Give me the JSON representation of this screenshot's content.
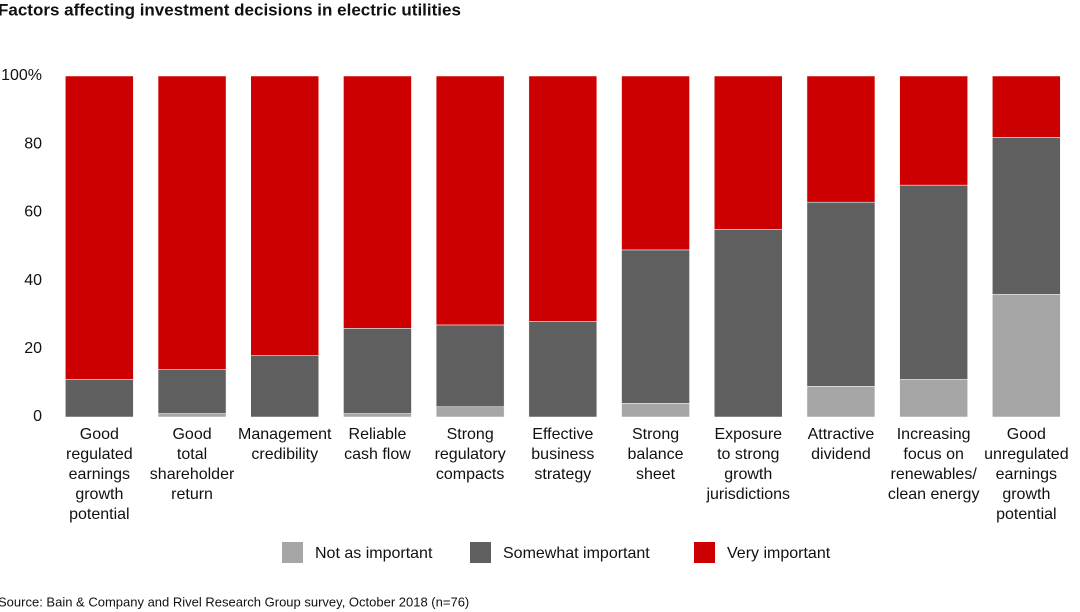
{
  "chart_data": {
    "type": "stacked-bar",
    "title": "Factors affecting investment decisions in electric utilities",
    "categories": [
      [
        "Good",
        "regulated",
        "earnings",
        "growth",
        "potential"
      ],
      [
        "Good",
        "total",
        "shareholder",
        "return"
      ],
      [
        "Management",
        "credibility"
      ],
      [
        "Reliable",
        "cash flow"
      ],
      [
        "Strong",
        "regulatory",
        "compacts"
      ],
      [
        "Effective",
        "business",
        "strategy"
      ],
      [
        "Strong",
        "balance",
        "sheet"
      ],
      [
        "Exposure",
        "to strong",
        "growth",
        "jurisdictions"
      ],
      [
        "Attractive",
        "dividend"
      ],
      [
        "Increasing",
        "focus on",
        "renewables/",
        "clean energy"
      ],
      [
        "Good",
        "unregulated",
        "earnings",
        "growth",
        "potential"
      ]
    ],
    "series": [
      {
        "name": "Not as important",
        "color": "#a6a6a6",
        "values": [
          0,
          1,
          0,
          1,
          3,
          0,
          4,
          0,
          9,
          11,
          36
        ]
      },
      {
        "name": "Somewhat important",
        "color": "#5f5f5f",
        "values": [
          11,
          13,
          18,
          25,
          24,
          28,
          45,
          55,
          54,
          57,
          46
        ]
      },
      {
        "name": "Very important",
        "color": "#cc0000",
        "values": [
          89,
          86,
          82,
          74,
          73,
          72,
          51,
          45,
          37,
          32,
          18
        ]
      }
    ],
    "ylim": [
      0,
      100
    ],
    "yticks": [
      0,
      20,
      40,
      60,
      80,
      {
        "value": 100,
        "label": "100%"
      }
    ],
    "source": "Source: Bain & Company and Rivel Research Group survey, October 2018 (n=76)"
  }
}
